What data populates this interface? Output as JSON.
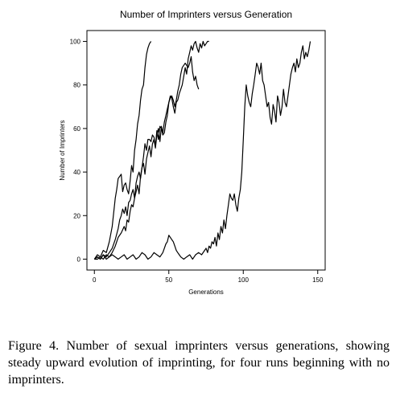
{
  "chart_data": {
    "type": "line",
    "title": "Number of Imprinters versus Generation",
    "xlabel": "Generations",
    "ylabel": "Number of Imprinters",
    "xlim": [
      -5,
      155
    ],
    "ylim": [
      -5,
      105
    ],
    "xticks": [
      0,
      50,
      100,
      150
    ],
    "yticks": [
      0,
      20,
      40,
      60,
      80,
      100
    ],
    "grid": false,
    "legend": "none",
    "line_color": "#000000",
    "series": [
      {
        "x": [
          0,
          2,
          4,
          6,
          8,
          10,
          12,
          14,
          15,
          16,
          17,
          18,
          19,
          20,
          21,
          22,
          23,
          24,
          25,
          26,
          27,
          28,
          29,
          30,
          31,
          32,
          33,
          34,
          35,
          36,
          37,
          38
        ],
        "y": [
          0,
          2,
          1,
          4,
          3,
          8,
          15,
          28,
          32,
          37,
          38,
          39,
          31,
          34,
          35,
          32,
          30,
          36,
          43,
          40,
          50,
          55,
          62,
          66,
          73,
          78,
          80,
          88,
          94,
          97,
          99,
          100
        ]
      },
      {
        "x": [
          0,
          2,
          4,
          6,
          8,
          10,
          12,
          14,
          16,
          17,
          18,
          19,
          20,
          21,
          22,
          23,
          24,
          25,
          26,
          27,
          28,
          29,
          30,
          31,
          32,
          33,
          34,
          35,
          36,
          37,
          38,
          39,
          40,
          41,
          42,
          43,
          44,
          45,
          46,
          47,
          48,
          49,
          50,
          51,
          52,
          53,
          54,
          55,
          56,
          57,
          58,
          59,
          60,
          61,
          62,
          63,
          64,
          65,
          66,
          67,
          68,
          69,
          70,
          71,
          72,
          73,
          74,
          75,
          76,
          77
        ],
        "y": [
          0,
          1,
          0,
          2,
          1,
          3,
          5,
          9,
          14,
          18,
          20,
          23,
          21,
          24,
          20,
          26,
          27,
          30,
          32,
          28,
          35,
          38,
          40,
          37,
          42,
          44,
          39,
          46,
          49,
          52,
          47,
          53,
          55,
          51,
          57,
          60,
          54,
          61,
          58,
          63,
          66,
          69,
          72,
          75,
          74,
          70,
          67,
          72,
          73,
          76,
          78,
          80,
          84,
          88,
          85,
          92,
          95,
          98,
          96,
          99,
          100,
          97,
          95,
          99,
          97,
          100,
          98,
          99,
          100,
          100
        ]
      },
      {
        "x": [
          0,
          2,
          4,
          6,
          8,
          10,
          12,
          14,
          16,
          18,
          20,
          21,
          22,
          23,
          24,
          25,
          26,
          27,
          28,
          29,
          30,
          31,
          32,
          33,
          34,
          35,
          36,
          37,
          38,
          39,
          40,
          41,
          42,
          43,
          44,
          45,
          46,
          47,
          48,
          49,
          50,
          51,
          52,
          53,
          54,
          55,
          56,
          57,
          58,
          59,
          60,
          61,
          62,
          63,
          64,
          65,
          66,
          67,
          68,
          69,
          70
        ],
        "y": [
          0,
          0,
          1,
          0,
          2,
          1,
          3,
          6,
          10,
          12,
          15,
          13,
          18,
          17,
          22,
          25,
          24,
          28,
          31,
          34,
          30,
          38,
          42,
          47,
          53,
          50,
          55,
          55,
          54,
          57,
          56,
          52,
          59,
          55,
          61,
          60,
          57,
          58,
          63,
          66,
          72,
          74,
          75,
          73,
          70,
          73,
          77,
          80,
          85,
          88,
          89,
          90,
          89,
          88,
          90,
          93,
          86,
          82,
          84,
          80,
          78
        ]
      },
      {
        "x": [
          0,
          2,
          4,
          6,
          8,
          10,
          12,
          14,
          16,
          18,
          20,
          22,
          24,
          26,
          28,
          30,
          32,
          34,
          36,
          38,
          40,
          42,
          44,
          46,
          47,
          48,
          49,
          50,
          51,
          52,
          53,
          54,
          55,
          56,
          57,
          58,
          60,
          62,
          64,
          65,
          66,
          67,
          68,
          70,
          72,
          74,
          75,
          76,
          77,
          78,
          79,
          80,
          81,
          82,
          83,
          84,
          85,
          86,
          87,
          88,
          89,
          90,
          91,
          92,
          93,
          94,
          95,
          96,
          97,
          98,
          99,
          100,
          101,
          102,
          103,
          104,
          105,
          106,
          107,
          108,
          109,
          110,
          111,
          112,
          113,
          114,
          115,
          116,
          117,
          118,
          119,
          120,
          121,
          122,
          123,
          124,
          125,
          126,
          127,
          128,
          129,
          130,
          131,
          132,
          133,
          134,
          135,
          136,
          137,
          138,
          139,
          140,
          141,
          142,
          143,
          144,
          145
        ],
        "y": [
          0,
          1,
          0,
          2,
          0,
          1,
          2,
          1,
          0,
          1,
          2,
          0,
          1,
          2,
          0,
          1,
          3,
          2,
          0,
          1,
          3,
          2,
          1,
          3,
          5,
          7,
          8,
          11,
          10,
          9,
          8,
          6,
          4,
          3,
          2,
          1,
          0,
          1,
          2,
          1,
          0,
          1,
          2,
          3,
          2,
          4,
          5,
          3,
          6,
          5,
          8,
          7,
          10,
          6,
          12,
          9,
          15,
          12,
          18,
          14,
          20,
          25,
          30,
          28,
          27,
          30,
          25,
          22,
          28,
          32,
          40,
          55,
          70,
          80,
          75,
          72,
          70,
          76,
          80,
          85,
          90,
          88,
          85,
          90,
          82,
          80,
          75,
          70,
          72,
          65,
          62,
          71,
          68,
          63,
          75,
          72,
          66,
          70,
          78,
          72,
          70,
          75,
          80,
          85,
          88,
          90,
          86,
          92,
          88,
          90,
          95,
          98,
          92,
          95,
          93,
          96,
          100
        ]
      }
    ]
  },
  "caption": "Figure 4. Number of sexual imprinters versus generations, showing steady upward evolution of imprinting, for four runs beginning with no imprinters."
}
